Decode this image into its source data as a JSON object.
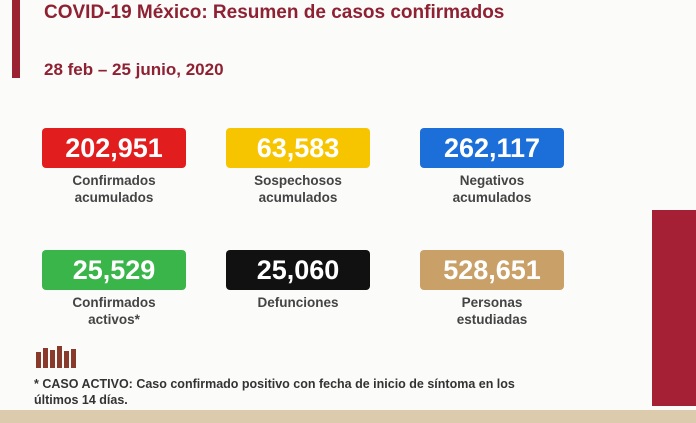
{
  "header": {
    "title": "COVID-19 México: Resumen de casos confirmados",
    "date_range": "28 feb – 25 junio, 2020"
  },
  "cards": [
    {
      "value": "202,951",
      "label": [
        "Confirmados",
        "acumulados"
      ]
    },
    {
      "value": "63,583",
      "label": [
        "Sospechosos",
        "acumulados"
      ]
    },
    {
      "value": "262,117",
      "label": [
        "Negativos",
        "acumulados"
      ]
    },
    {
      "value": "25,529",
      "label": [
        "Confirmados",
        "activos*"
      ]
    },
    {
      "value": "25,060",
      "label": [
        "Defunciones"
      ]
    },
    {
      "value": "528,651",
      "label": [
        "Personas",
        "estudiadas"
      ]
    }
  ],
  "footnote": "* CASO ACTIVO: Caso confirmado positivo con fecha de inicio de síntoma en los últimos 14 días."
}
